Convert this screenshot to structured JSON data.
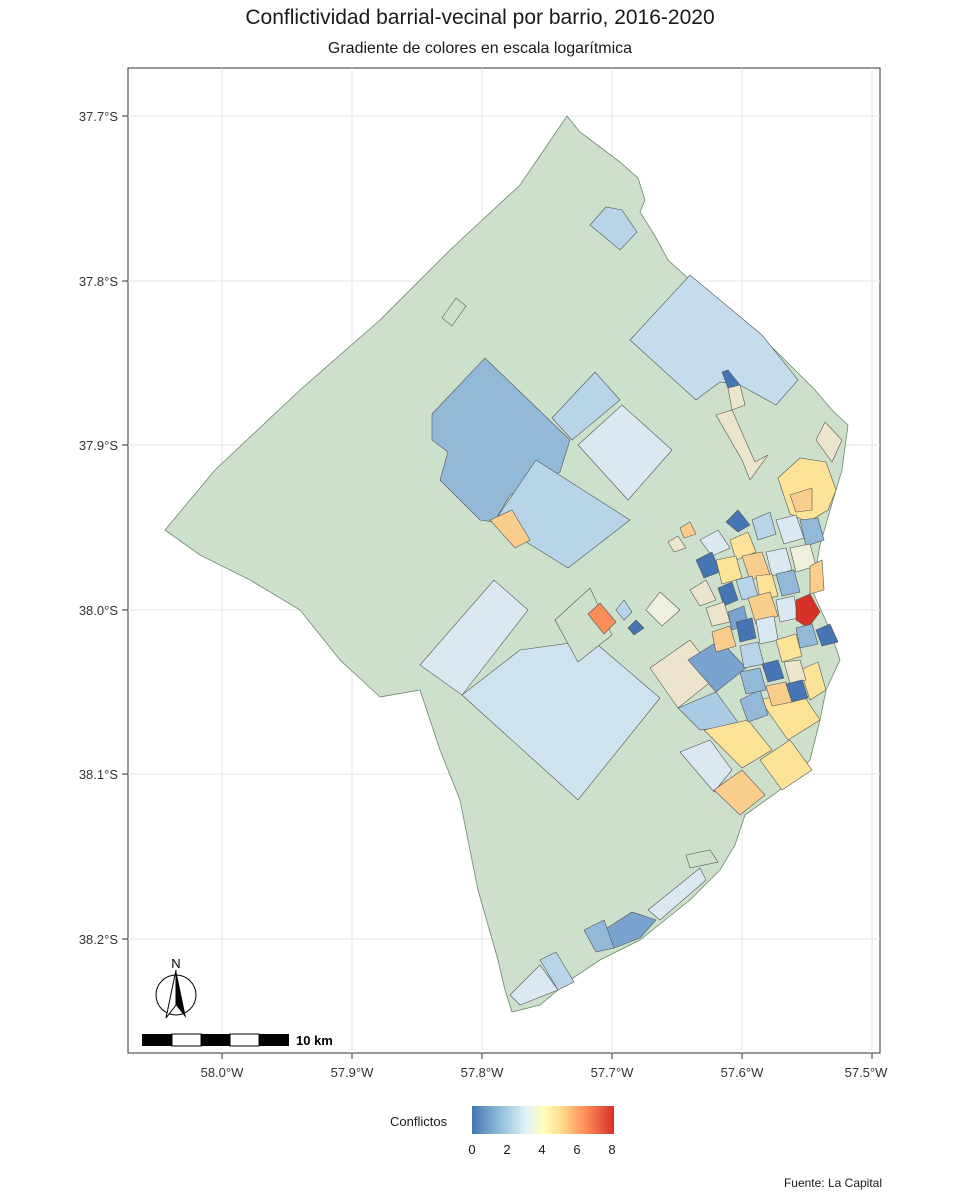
{
  "title": "Conflictividad barrial-vecinal por barrio, 2016-2020",
  "subtitle": "Gradiente de colores en escala logarítmica",
  "y_axis_ticks": [
    "37.7°S",
    "37.8°S",
    "37.9°S",
    "38.0°S",
    "38.1°S",
    "38.2°S"
  ],
  "x_axis_ticks": [
    "58.0°W",
    "57.9°W",
    "57.8°W",
    "57.7°W",
    "57.6°W",
    "57.5°W"
  ],
  "north_arrow_label": "N",
  "scale_bar_label": "10 km",
  "legend": {
    "title": "Conflictos",
    "ticks": [
      "0",
      "2",
      "4",
      "6",
      "8"
    ],
    "colors": [
      "#4575b4",
      "#91bfdb",
      "#e0f3f8",
      "#ffffbf",
      "#fee090",
      "#fc8d59",
      "#d73027"
    ]
  },
  "source": "Fuente: La Capital",
  "colors": {
    "base_land": "#cde0cc",
    "grid": "#e6e6e6"
  }
}
